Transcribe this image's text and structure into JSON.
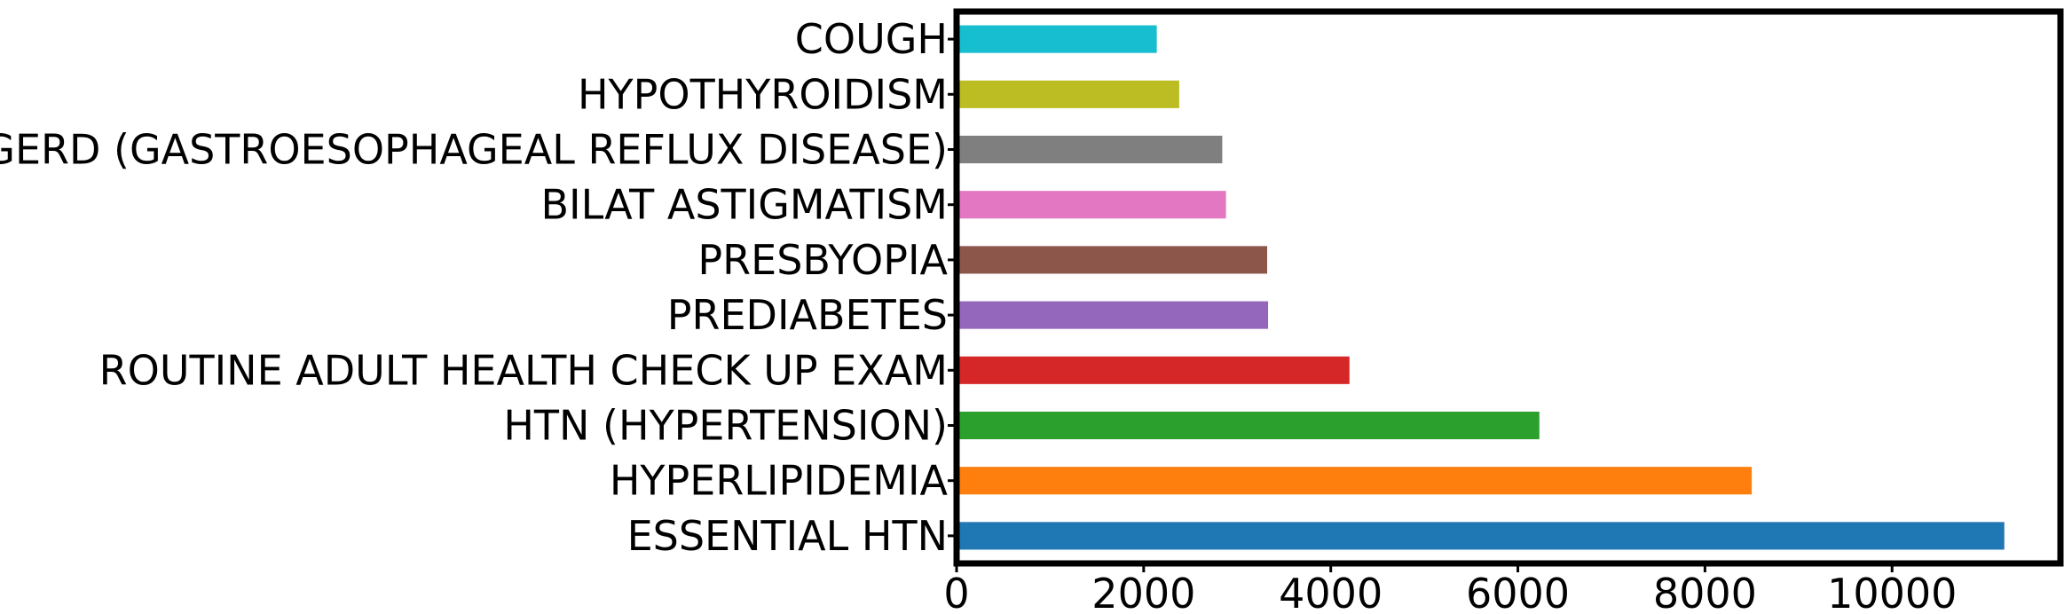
{
  "chart_data": {
    "type": "bar",
    "orientation": "horizontal",
    "title": "",
    "xlabel": "",
    "ylabel": "",
    "categories": [
      "ESSENTIAL HTN",
      "HYPERLIPIDEMIA",
      "HTN (HYPERTENSION)",
      "ROUTINE ADULT HEALTH CHECK UP EXAM",
      "PREDIABETES",
      "PRESBYOPIA",
      "BILAT ASTIGMATISM",
      "GERD (GASTROESOPHAGEAL REFLUX DISEASE)",
      "HYPOTHYROIDISM",
      "COUGH"
    ],
    "values": [
      11200,
      8500,
      6230,
      4200,
      3330,
      3320,
      2880,
      2840,
      2380,
      2140
    ],
    "colors": [
      "#1f77b4",
      "#ff7f0e",
      "#2ca02c",
      "#d62728",
      "#9467bd",
      "#8c564b",
      "#e377c2",
      "#7f7f7f",
      "#bcbd22",
      "#17becf"
    ],
    "xlim": [
      0,
      11800
    ],
    "xticks": [
      0,
      2000,
      4000,
      6000,
      8000,
      10000
    ],
    "xtick_labels": [
      "0",
      "2000",
      "4000",
      "6000",
      "8000",
      "10000"
    ],
    "grid": false,
    "legend": "none"
  }
}
